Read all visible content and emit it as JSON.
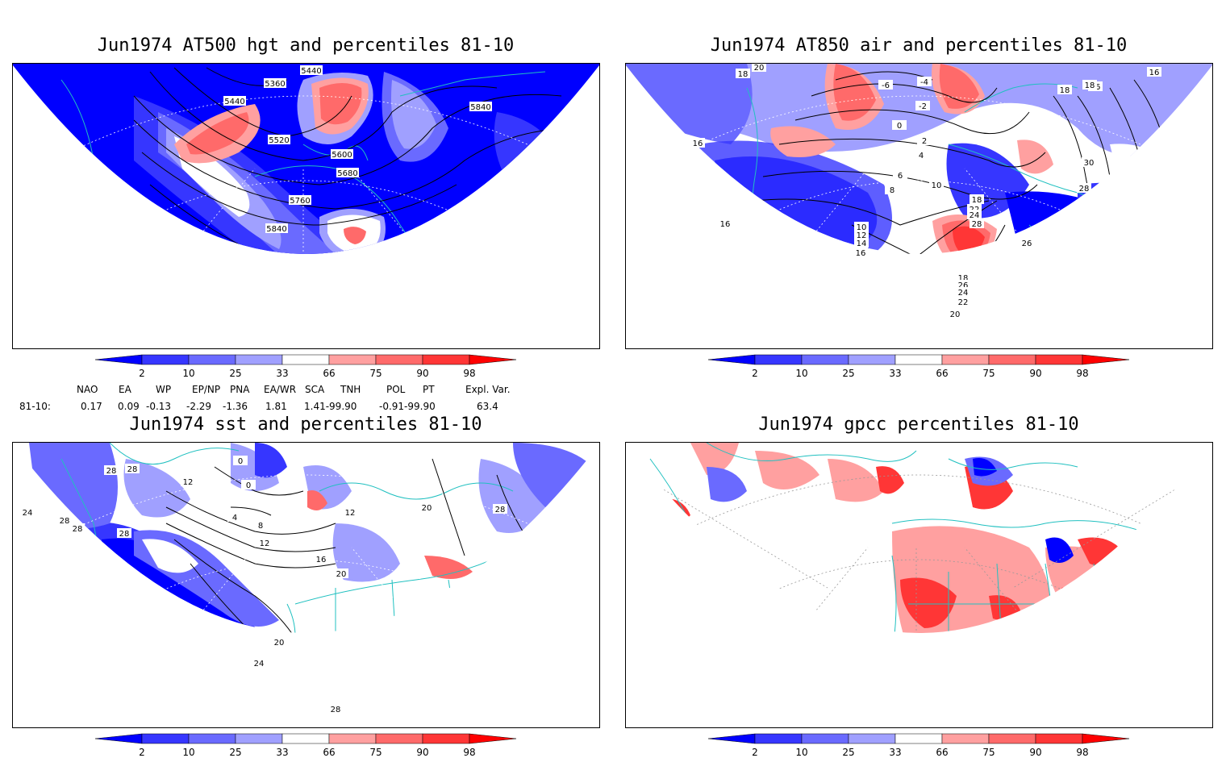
{
  "panels": [
    {
      "title": "Jun1974 AT500 hgt and percentiles 81-10",
      "contour_labels": [
        "5440",
        "5360",
        "5440",
        "5520",
        "5600",
        "5680",
        "5760",
        "5840",
        "5840"
      ]
    },
    {
      "title": "Jun1974 AT850 air and percentiles 81-10",
      "contour_labels": [
        "20",
        "18",
        "-6",
        "-4",
        "-2",
        "0",
        "2",
        "4",
        "6",
        "8",
        "10",
        "18",
        "22",
        "24",
        "28",
        "26",
        "16",
        "16",
        "18",
        "26",
        "28",
        "30",
        "16",
        "10",
        "12",
        "14",
        "16",
        "18",
        "26",
        "24",
        "22",
        "20",
        "18"
      ]
    },
    {
      "title": "Jun1974 sst and percentiles 81-10",
      "contour_labels": [
        "28",
        "28",
        "28",
        "28",
        "28",
        "12",
        "0",
        "0",
        "4",
        "8",
        "12",
        "12",
        "16",
        "20",
        "20",
        "24",
        "28",
        "28",
        "24",
        "20"
      ]
    },
    {
      "title": "Jun1974 gpcc percentiles 81-10",
      "contour_labels": []
    }
  ],
  "colorbar": {
    "ticks": [
      "2",
      "10",
      "25",
      "33",
      "66",
      "75",
      "90",
      "98"
    ],
    "colors": [
      "#0000ff",
      "#3636ff",
      "#6a6aff",
      "#a0a0ff",
      "#ffffff",
      "#ffa0a0",
      "#ff6a6a",
      "#ff3636",
      "#ff0000"
    ]
  },
  "indices": {
    "headers": [
      "NAO",
      "EA",
      "WP",
      "EP/NP",
      "PNA",
      "EA/WR",
      "SCA",
      "TNH",
      "POL",
      "PT",
      "Expl. Var."
    ],
    "row_label": "81-10:",
    "values": [
      "0.17",
      "0.09",
      "-0.13",
      "-2.29",
      "-1.36",
      "1.81",
      "1.41-99.90",
      "-0.91-99.90",
      "63.4"
    ]
  },
  "colors": {
    "coast": "#20c0c0",
    "low": "#0000ff",
    "high": "#ff0000"
  }
}
